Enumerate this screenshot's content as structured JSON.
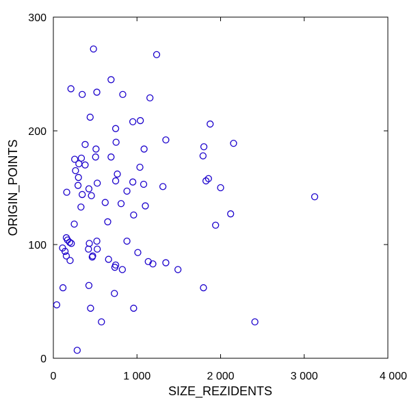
{
  "chart_data": {
    "type": "scatter",
    "title": "",
    "xlabel": "SIZE_REZIDENTS",
    "ylabel": "ORIGIN_POINTS",
    "xlim": [
      0,
      4000
    ],
    "ylim": [
      0,
      300
    ],
    "xticks": [
      {
        "value": 0,
        "label": "0"
      },
      {
        "value": 1000,
        "label": "1 000"
      },
      {
        "value": 2000,
        "label": "2 000"
      },
      {
        "value": 3000,
        "label": "3 000"
      },
      {
        "value": 4000,
        "label": "4 000"
      }
    ],
    "yticks": [
      {
        "value": 0,
        "label": "0"
      },
      {
        "value": 100,
        "label": "100"
      },
      {
        "value": 200,
        "label": "200"
      },
      {
        "value": 300,
        "label": "300"
      }
    ],
    "grid": false,
    "marker": "open-circle",
    "marker_color": "#1a00cc",
    "points": [
      [
        480,
        272
      ],
      [
        1235,
        267
      ],
      [
        690,
        245
      ],
      [
        210,
        237
      ],
      [
        345,
        232
      ],
      [
        520,
        234
      ],
      [
        830,
        232
      ],
      [
        1155,
        229
      ],
      [
        440,
        212
      ],
      [
        745,
        202
      ],
      [
        950,
        208
      ],
      [
        1040,
        209
      ],
      [
        1875,
        206
      ],
      [
        1345,
        192
      ],
      [
        2155,
        189
      ],
      [
        380,
        188
      ],
      [
        750,
        190
      ],
      [
        510,
        184
      ],
      [
        1085,
        184
      ],
      [
        1800,
        186
      ],
      [
        1790,
        178
      ],
      [
        255,
        175
      ],
      [
        335,
        176
      ],
      [
        305,
        171
      ],
      [
        380,
        170
      ],
      [
        505,
        177
      ],
      [
        690,
        177
      ],
      [
        265,
        165
      ],
      [
        1035,
        168
      ],
      [
        300,
        159
      ],
      [
        765,
        162
      ],
      [
        745,
        156
      ],
      [
        950,
        155
      ],
      [
        1080,
        153
      ],
      [
        1310,
        151
      ],
      [
        1825,
        156
      ],
      [
        1855,
        158
      ],
      [
        2000,
        150
      ],
      [
        295,
        152
      ],
      [
        425,
        149
      ],
      [
        525,
        154
      ],
      [
        160,
        146
      ],
      [
        455,
        143
      ],
      [
        345,
        144
      ],
      [
        880,
        147
      ],
      [
        3125,
        142
      ],
      [
        620,
        137
      ],
      [
        330,
        133
      ],
      [
        810,
        136
      ],
      [
        1100,
        134
      ],
      [
        2120,
        127
      ],
      [
        960,
        126
      ],
      [
        650,
        120
      ],
      [
        250,
        118
      ],
      [
        1940,
        117
      ],
      [
        155,
        106
      ],
      [
        195,
        102
      ],
      [
        170,
        104
      ],
      [
        215,
        101
      ],
      [
        430,
        101
      ],
      [
        520,
        103
      ],
      [
        880,
        103
      ],
      [
        110,
        97
      ],
      [
        140,
        94
      ],
      [
        420,
        96
      ],
      [
        525,
        96
      ],
      [
        1010,
        93
      ],
      [
        155,
        90
      ],
      [
        465,
        89
      ],
      [
        470,
        90
      ],
      [
        200,
        86
      ],
      [
        660,
        87
      ],
      [
        1135,
        85
      ],
      [
        1190,
        83
      ],
      [
        1345,
        84
      ],
      [
        735,
        80
      ],
      [
        745,
        82
      ],
      [
        825,
        78
      ],
      [
        1490,
        78
      ],
      [
        115,
        62
      ],
      [
        425,
        64
      ],
      [
        1795,
        62
      ],
      [
        730,
        57
      ],
      [
        40,
        47
      ],
      [
        445,
        44
      ],
      [
        960,
        44
      ],
      [
        575,
        32
      ],
      [
        2410,
        32
      ],
      [
        285,
        7
      ]
    ]
  }
}
